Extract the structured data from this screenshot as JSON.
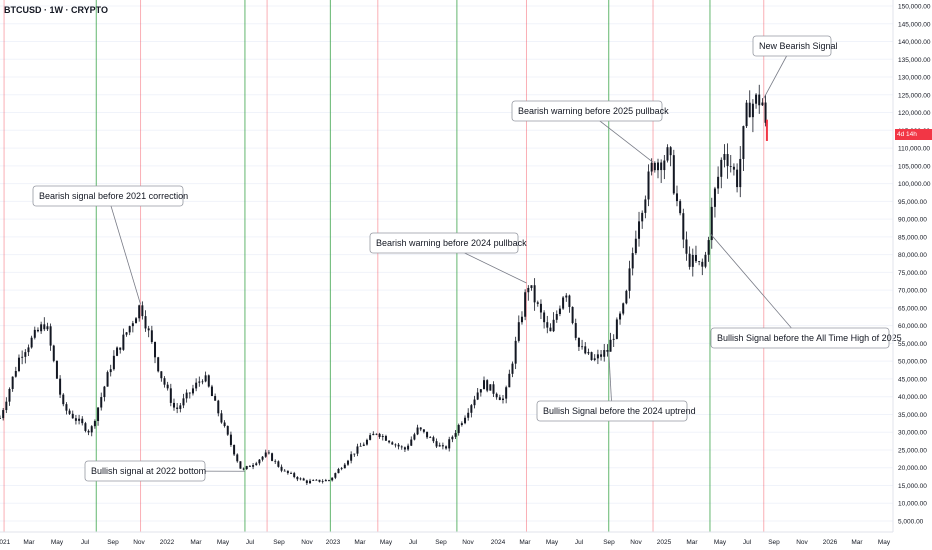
{
  "header": {
    "symbol_title": "BTCUSD · 1W · CRYPTO"
  },
  "price_tag": {
    "label": "4d 14h",
    "color": "#f23645"
  },
  "colors": {
    "bullish_line": "#2e9e3e",
    "bearish_line": "#f23645",
    "candle": "#131722",
    "grid": "#f0f3fa"
  },
  "chart_data": {
    "type": "candlestick",
    "title": "",
    "xlabel": "",
    "ylabel": "",
    "ylim": [
      0,
      150000
    ],
    "y_ticks": [
      "5,000.00",
      "10,000.00",
      "15,000.00",
      "20,000.00",
      "25,000.00",
      "30,000.00",
      "35,000.00",
      "40,000.00",
      "45,000.00",
      "50,000.00",
      "55,000.00",
      "60,000.00",
      "65,000.00",
      "70,000.00",
      "75,000.00",
      "80,000.00",
      "85,000.00",
      "90,000.00",
      "95,000.00",
      "100,000.00",
      "105,000.00",
      "110,000.00",
      "115,000.00",
      "120,000.00",
      "125,000.00",
      "130,000.00",
      "135,000.00",
      "140,000.00",
      "145,000.00",
      "150,000.00"
    ],
    "x_ticks": [
      "2021",
      "Mar",
      "May",
      "Jul",
      "Sep",
      "Nov",
      "2022",
      "Mar",
      "May",
      "Jul",
      "Sep",
      "Nov",
      "2023",
      "Mar",
      "May",
      "Jul",
      "Sep",
      "Nov",
      "2024",
      "Mar",
      "May",
      "Jul",
      "Sep",
      "Nov",
      "2025",
      "Mar",
      "May",
      "Jul",
      "Sep",
      "Nov",
      "2026",
      "Mar",
      "May"
    ],
    "x_range": [
      "2021-01-01",
      "2026-05-31"
    ],
    "price_path": [
      [
        "2021-01-01",
        34000
      ],
      [
        "2021-02-15",
        52000
      ],
      [
        "2021-04-12",
        61000
      ],
      [
        "2021-05-20",
        37000
      ],
      [
        "2021-07-20",
        30000
      ],
      [
        "2021-09-06",
        50000
      ],
      [
        "2021-11-08",
        66000
      ],
      [
        "2021-12-20",
        47000
      ],
      [
        "2022-01-24",
        36000
      ],
      [
        "2022-03-28",
        46000
      ],
      [
        "2022-05-16",
        30000
      ],
      [
        "2022-06-20",
        19000
      ],
      [
        "2022-08-15",
        24000
      ],
      [
        "2022-09-20",
        19000
      ],
      [
        "2022-11-09",
        16000
      ],
      [
        "2022-12-31",
        16500
      ],
      [
        "2023-02-20",
        24000
      ],
      [
        "2023-04-14",
        30000
      ],
      [
        "2023-06-15",
        25000
      ],
      [
        "2023-07-15",
        31000
      ],
      [
        "2023-09-11",
        25000
      ],
      [
        "2023-10-23",
        34000
      ],
      [
        "2023-12-05",
        44000
      ],
      [
        "2024-01-22",
        39000
      ],
      [
        "2024-03-14",
        72000
      ],
      [
        "2024-05-01",
        57000
      ],
      [
        "2024-06-05",
        71000
      ],
      [
        "2024-07-05",
        54000
      ],
      [
        "2024-08-05",
        50000
      ],
      [
        "2024-09-06",
        53000
      ],
      [
        "2024-10-15",
        66000
      ],
      [
        "2024-11-12",
        90000
      ],
      [
        "2024-12-17",
        106000
      ],
      [
        "2025-01-20",
        108000
      ],
      [
        "2025-02-28",
        79000
      ],
      [
        "2025-04-07",
        76000
      ],
      [
        "2025-04-28",
        95000
      ],
      [
        "2025-05-22",
        110000
      ],
      [
        "2025-06-20",
        101000
      ],
      [
        "2025-07-14",
        122000
      ],
      [
        "2025-08-14",
        124000
      ],
      [
        "2025-08-25",
        112000
      ]
    ],
    "signal_lines": [
      {
        "date": "2021-01-10",
        "kind": "bearish"
      },
      {
        "date": "2021-08-02",
        "kind": "bullish"
      },
      {
        "date": "2021-11-08",
        "kind": "bearish"
      },
      {
        "date": "2022-06-27",
        "kind": "bullish"
      },
      {
        "date": "2022-08-15",
        "kind": "bearish"
      },
      {
        "date": "2023-01-02",
        "kind": "bullish"
      },
      {
        "date": "2023-04-17",
        "kind": "bearish"
      },
      {
        "date": "2023-10-09",
        "kind": "bullish"
      },
      {
        "date": "2024-03-11",
        "kind": "bearish"
      },
      {
        "date": "2024-09-09",
        "kind": "bullish"
      },
      {
        "date": "2024-12-16",
        "kind": "bearish"
      },
      {
        "date": "2025-04-21",
        "kind": "bullish"
      },
      {
        "date": "2025-08-18",
        "kind": "bearish"
      }
    ],
    "annotations": [
      {
        "text": "Bearish signal before 2021 correction",
        "point_date": "2021-11-08",
        "point_value": 66000
      },
      {
        "text": "Bullish signal at 2022 bottom",
        "point_date": "2022-06-27",
        "point_value": 19000
      },
      {
        "text": "Bearish warning before 2024 pullback",
        "point_date": "2024-03-11",
        "point_value": 72000
      },
      {
        "text": "Bullish Signal before the 2024 uptrend",
        "point_date": "2024-09-09",
        "point_value": 53000
      },
      {
        "text": "Bearish warning before 2025 pullback",
        "point_date": "2024-12-16",
        "point_value": 106000
      },
      {
        "text": "Bullish Signal before the All Time High of 2025",
        "point_date": "2025-04-21",
        "point_value": 86000
      },
      {
        "text": "New Bearish Signal",
        "point_date": "2025-08-18",
        "point_value": 124000
      }
    ]
  }
}
